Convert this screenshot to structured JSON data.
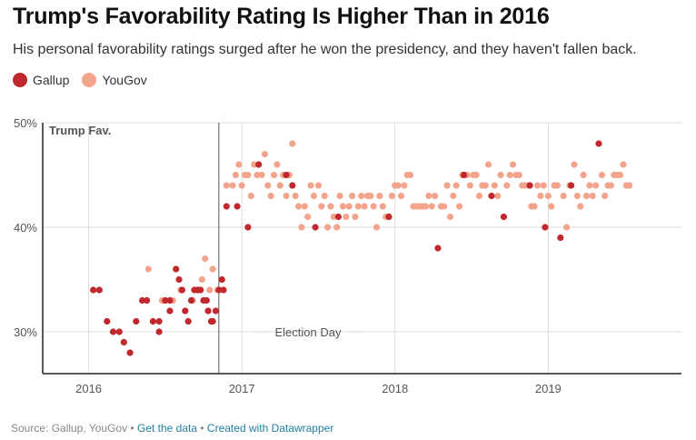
{
  "title": "Trump's Favorability Rating Is Higher Than in 2016",
  "subtitle": "His personal favorability ratings surged after he won the presidency, and they haven't fallen back.",
  "footer": {
    "source": "Source: Gallup, YouGov",
    "separator": "•",
    "link_data": "Get the data",
    "link_created": "Created with Datawrapper"
  },
  "chart_data": {
    "type": "scatter",
    "title": "",
    "xlabel": "",
    "ylabel": "",
    "x_ticks": [
      "2016",
      "2017",
      "2018",
      "2019"
    ],
    "y_ticks": [
      "50%",
      "40%",
      "30%"
    ],
    "xlim": [
      2015.7,
      2019.87
    ],
    "ylim": [
      26,
      50
    ],
    "grid": true,
    "legend_placement": "top-left",
    "annotations": [
      {
        "label": "Trump Fav.",
        "x": 2015.7,
        "y": 50
      },
      {
        "label": "Election Day",
        "x": 2016.85,
        "y": 30
      }
    ],
    "series": [
      {
        "name": "Gallup",
        "color": "#c0282d",
        "points": [
          [
            2016.03,
            34
          ],
          [
            2016.07,
            34
          ],
          [
            2016.12,
            31
          ],
          [
            2016.16,
            30
          ],
          [
            2016.2,
            30
          ],
          [
            2016.23,
            29
          ],
          [
            2016.27,
            28
          ],
          [
            2016.31,
            31
          ],
          [
            2016.35,
            33
          ],
          [
            2016.38,
            33
          ],
          [
            2016.42,
            31
          ],
          [
            2016.46,
            30
          ],
          [
            2016.46,
            31
          ],
          [
            2016.5,
            33
          ],
          [
            2016.53,
            33
          ],
          [
            2016.53,
            32
          ],
          [
            2016.57,
            36
          ],
          [
            2016.59,
            35
          ],
          [
            2016.61,
            34
          ],
          [
            2016.63,
            32
          ],
          [
            2016.65,
            31
          ],
          [
            2016.67,
            33
          ],
          [
            2016.69,
            34
          ],
          [
            2016.71,
            34
          ],
          [
            2016.73,
            34
          ],
          [
            2016.75,
            33
          ],
          [
            2016.77,
            33
          ],
          [
            2016.78,
            32
          ],
          [
            2016.8,
            31
          ],
          [
            2016.81,
            31
          ],
          [
            2016.83,
            32
          ],
          [
            2016.85,
            34
          ],
          [
            2016.87,
            35
          ],
          [
            2016.88,
            34
          ],
          [
            2016.9,
            42
          ],
          [
            2016.97,
            42
          ],
          [
            2017.04,
            40
          ],
          [
            2017.11,
            46
          ],
          [
            2017.29,
            45
          ],
          [
            2017.33,
            44
          ],
          [
            2017.48,
            40
          ],
          [
            2017.63,
            41
          ],
          [
            2017.96,
            41
          ],
          [
            2018.28,
            38
          ],
          [
            2018.45,
            45
          ],
          [
            2018.63,
            43
          ],
          [
            2018.71,
            41
          ],
          [
            2018.88,
            44
          ],
          [
            2018.98,
            40
          ],
          [
            2019.08,
            39
          ],
          [
            2019.15,
            44
          ],
          [
            2019.33,
            48
          ]
        ]
      },
      {
        "name": "YouGov",
        "color": "#f2a48c",
        "points": [
          [
            2016.39,
            36
          ],
          [
            2016.48,
            33
          ],
          [
            2016.55,
            33
          ],
          [
            2016.6,
            34
          ],
          [
            2016.68,
            33
          ],
          [
            2016.72,
            34
          ],
          [
            2016.74,
            35
          ],
          [
            2016.76,
            37
          ],
          [
            2016.79,
            34
          ],
          [
            2016.81,
            36
          ],
          [
            2016.84,
            34
          ],
          [
            2016.9,
            44
          ],
          [
            2016.94,
            44
          ],
          [
            2016.96,
            45
          ],
          [
            2016.98,
            46
          ],
          [
            2017.0,
            44
          ],
          [
            2017.02,
            45
          ],
          [
            2017.04,
            45
          ],
          [
            2017.06,
            43
          ],
          [
            2017.08,
            46
          ],
          [
            2017.1,
            45
          ],
          [
            2017.13,
            45
          ],
          [
            2017.15,
            47
          ],
          [
            2017.17,
            44
          ],
          [
            2017.19,
            43
          ],
          [
            2017.21,
            45
          ],
          [
            2017.23,
            46
          ],
          [
            2017.25,
            44
          ],
          [
            2017.27,
            45
          ],
          [
            2017.29,
            43
          ],
          [
            2017.31,
            45
          ],
          [
            2017.33,
            48
          ],
          [
            2017.35,
            43
          ],
          [
            2017.37,
            42
          ],
          [
            2017.39,
            40
          ],
          [
            2017.41,
            42
          ],
          [
            2017.43,
            41
          ],
          [
            2017.45,
            44
          ],
          [
            2017.47,
            43
          ],
          [
            2017.5,
            44
          ],
          [
            2017.52,
            42
          ],
          [
            2017.54,
            43
          ],
          [
            2017.56,
            40
          ],
          [
            2017.58,
            42
          ],
          [
            2017.6,
            41
          ],
          [
            2017.62,
            40
          ],
          [
            2017.64,
            43
          ],
          [
            2017.66,
            42
          ],
          [
            2017.68,
            41
          ],
          [
            2017.7,
            42
          ],
          [
            2017.72,
            43
          ],
          [
            2017.74,
            41
          ],
          [
            2017.76,
            42
          ],
          [
            2017.78,
            43
          ],
          [
            2017.8,
            42
          ],
          [
            2017.82,
            43
          ],
          [
            2017.84,
            43
          ],
          [
            2017.86,
            42
          ],
          [
            2017.88,
            40
          ],
          [
            2017.9,
            43
          ],
          [
            2017.92,
            42
          ],
          [
            2017.94,
            41
          ],
          [
            2017.98,
            43
          ],
          [
            2018.0,
            44
          ],
          [
            2018.02,
            44
          ],
          [
            2018.04,
            43
          ],
          [
            2018.06,
            44
          ],
          [
            2018.08,
            45
          ],
          [
            2018.1,
            45
          ],
          [
            2018.12,
            42
          ],
          [
            2018.14,
            42
          ],
          [
            2018.16,
            42
          ],
          [
            2018.18,
            42
          ],
          [
            2018.2,
            42
          ],
          [
            2018.22,
            43
          ],
          [
            2018.24,
            42
          ],
          [
            2018.26,
            43
          ],
          [
            2018.3,
            42
          ],
          [
            2018.32,
            42
          ],
          [
            2018.34,
            44
          ],
          [
            2018.36,
            41
          ],
          [
            2018.38,
            43
          ],
          [
            2018.4,
            44
          ],
          [
            2018.42,
            42
          ],
          [
            2018.44,
            45
          ],
          [
            2018.47,
            45
          ],
          [
            2018.49,
            44
          ],
          [
            2018.51,
            45
          ],
          [
            2018.53,
            45
          ],
          [
            2018.55,
            43
          ],
          [
            2018.57,
            44
          ],
          [
            2018.59,
            44
          ],
          [
            2018.61,
            46
          ],
          [
            2018.65,
            44
          ],
          [
            2018.67,
            43
          ],
          [
            2018.69,
            45
          ],
          [
            2018.73,
            44
          ],
          [
            2018.75,
            45
          ],
          [
            2018.77,
            46
          ],
          [
            2018.79,
            45
          ],
          [
            2018.81,
            45
          ],
          [
            2018.83,
            44
          ],
          [
            2018.85,
            44
          ],
          [
            2018.87,
            44
          ],
          [
            2018.89,
            42
          ],
          [
            2018.91,
            42
          ],
          [
            2018.93,
            44
          ],
          [
            2018.95,
            43
          ],
          [
            2018.97,
            44
          ],
          [
            2019.0,
            43
          ],
          [
            2019.02,
            42
          ],
          [
            2019.04,
            44
          ],
          [
            2019.06,
            44
          ],
          [
            2019.1,
            43
          ],
          [
            2019.12,
            40
          ],
          [
            2019.14,
            44
          ],
          [
            2019.17,
            46
          ],
          [
            2019.19,
            43
          ],
          [
            2019.21,
            42
          ],
          [
            2019.23,
            45
          ],
          [
            2019.25,
            43
          ],
          [
            2019.27,
            44
          ],
          [
            2019.29,
            43
          ],
          [
            2019.31,
            44
          ],
          [
            2019.35,
            45
          ],
          [
            2019.37,
            43
          ],
          [
            2019.39,
            44
          ],
          [
            2019.41,
            44
          ],
          [
            2019.43,
            45
          ],
          [
            2019.45,
            45
          ],
          [
            2019.47,
            45
          ],
          [
            2019.49,
            46
          ],
          [
            2019.51,
            44
          ],
          [
            2019.53,
            44
          ]
        ]
      }
    ]
  }
}
